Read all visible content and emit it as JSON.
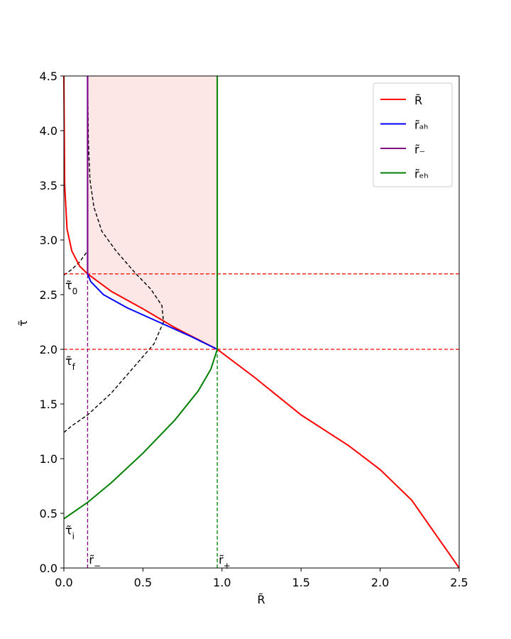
{
  "chart_data": {
    "type": "line",
    "xlabel": "R̃",
    "ylabel": "τ̃",
    "xlim": [
      0,
      2.5
    ],
    "ylim": [
      0,
      4.5
    ],
    "xticks": [
      {
        "value": 0,
        "label": "0.0"
      },
      0.5,
      {
        "value": 1,
        "label": "1.0"
      },
      1.5,
      {
        "value": 2,
        "label": "2.0"
      },
      2.5
    ],
    "yticks": [
      {
        "value": 0,
        "label": "0.0"
      },
      0.5,
      {
        "value": 1,
        "label": "1.0"
      },
      1.5,
      {
        "value": 2,
        "label": "2.0"
      },
      2.5,
      {
        "value": 3,
        "label": "3.0"
      },
      3.5,
      {
        "value": 4,
        "label": "4.0"
      },
      4.5
    ],
    "legend": "upper right",
    "shade_color": "#fde6e6",
    "series": [
      {
        "name": "R̃",
        "color": "#ff0000",
        "x": [
          0.0,
          0.005,
          0.02,
          0.05,
          0.1,
          0.15,
          0.3,
          0.5,
          0.7,
          0.97,
          1.2,
          1.5,
          1.8,
          2.0,
          2.2,
          2.5
        ],
        "values": [
          4.5,
          3.5,
          3.1,
          2.9,
          2.76,
          2.69,
          2.53,
          2.37,
          2.2,
          2.0,
          1.75,
          1.4,
          1.12,
          0.9,
          0.62,
          0.0
        ]
      },
      {
        "name": "r̃ₐₕ",
        "color": "#0000ff",
        "x": [
          0.15,
          0.15,
          0.17,
          0.25,
          0.4,
          0.6,
          0.8,
          0.97
        ],
        "values": [
          4.5,
          2.69,
          2.62,
          2.5,
          2.38,
          2.25,
          2.12,
          2.0
        ]
      },
      {
        "name": "r̃₋",
        "color": "#800080",
        "x": [
          0.15,
          0.15
        ],
        "values": [
          2.69,
          4.5
        ]
      },
      {
        "name": "r̃ₑₕ",
        "color": "#008000",
        "x": [
          0.0,
          0.15,
          0.3,
          0.5,
          0.7,
          0.85,
          0.93,
          0.97,
          0.97
        ],
        "values": [
          0.45,
          0.6,
          0.78,
          1.05,
          1.35,
          1.62,
          1.82,
          2.0,
          4.5
        ]
      }
    ],
    "dashed_curves": [
      {
        "color": "#000000",
        "x": [
          0.0,
          0.05,
          0.15,
          0.3,
          0.45,
          0.57,
          0.63,
          0.62,
          0.55,
          0.45,
          0.33,
          0.24,
          0.19,
          0.165,
          0.155,
          0.15
        ],
        "values": [
          1.24,
          1.3,
          1.4,
          1.6,
          1.85,
          2.05,
          2.25,
          2.4,
          2.55,
          2.7,
          2.9,
          3.08,
          3.3,
          3.55,
          3.9,
          4.5
        ]
      },
      {
        "color": "#000000",
        "x": [
          0.0,
          0.05,
          0.1,
          0.15
        ],
        "values": [
          2.68,
          2.73,
          2.8,
          2.9
        ]
      }
    ],
    "hlines": [
      {
        "y": 2.69,
        "color": "#ff0000",
        "label": {
          "text": "τ̃",
          "sub": "0"
        }
      },
      {
        "y": 2.0,
        "color": "#ff0000",
        "label": {
          "text": "τ̃",
          "sub": "f"
        }
      }
    ],
    "vlines": [
      {
        "x": 0.15,
        "color": "#800080",
        "label": {
          "text": "r̃",
          "sub": "−"
        }
      },
      {
        "x": 0.97,
        "color": "#008000",
        "label": {
          "text": "r̃",
          "sub": "+"
        }
      }
    ],
    "start_label": {
      "text": "τ̃",
      "sub": "i"
    }
  }
}
